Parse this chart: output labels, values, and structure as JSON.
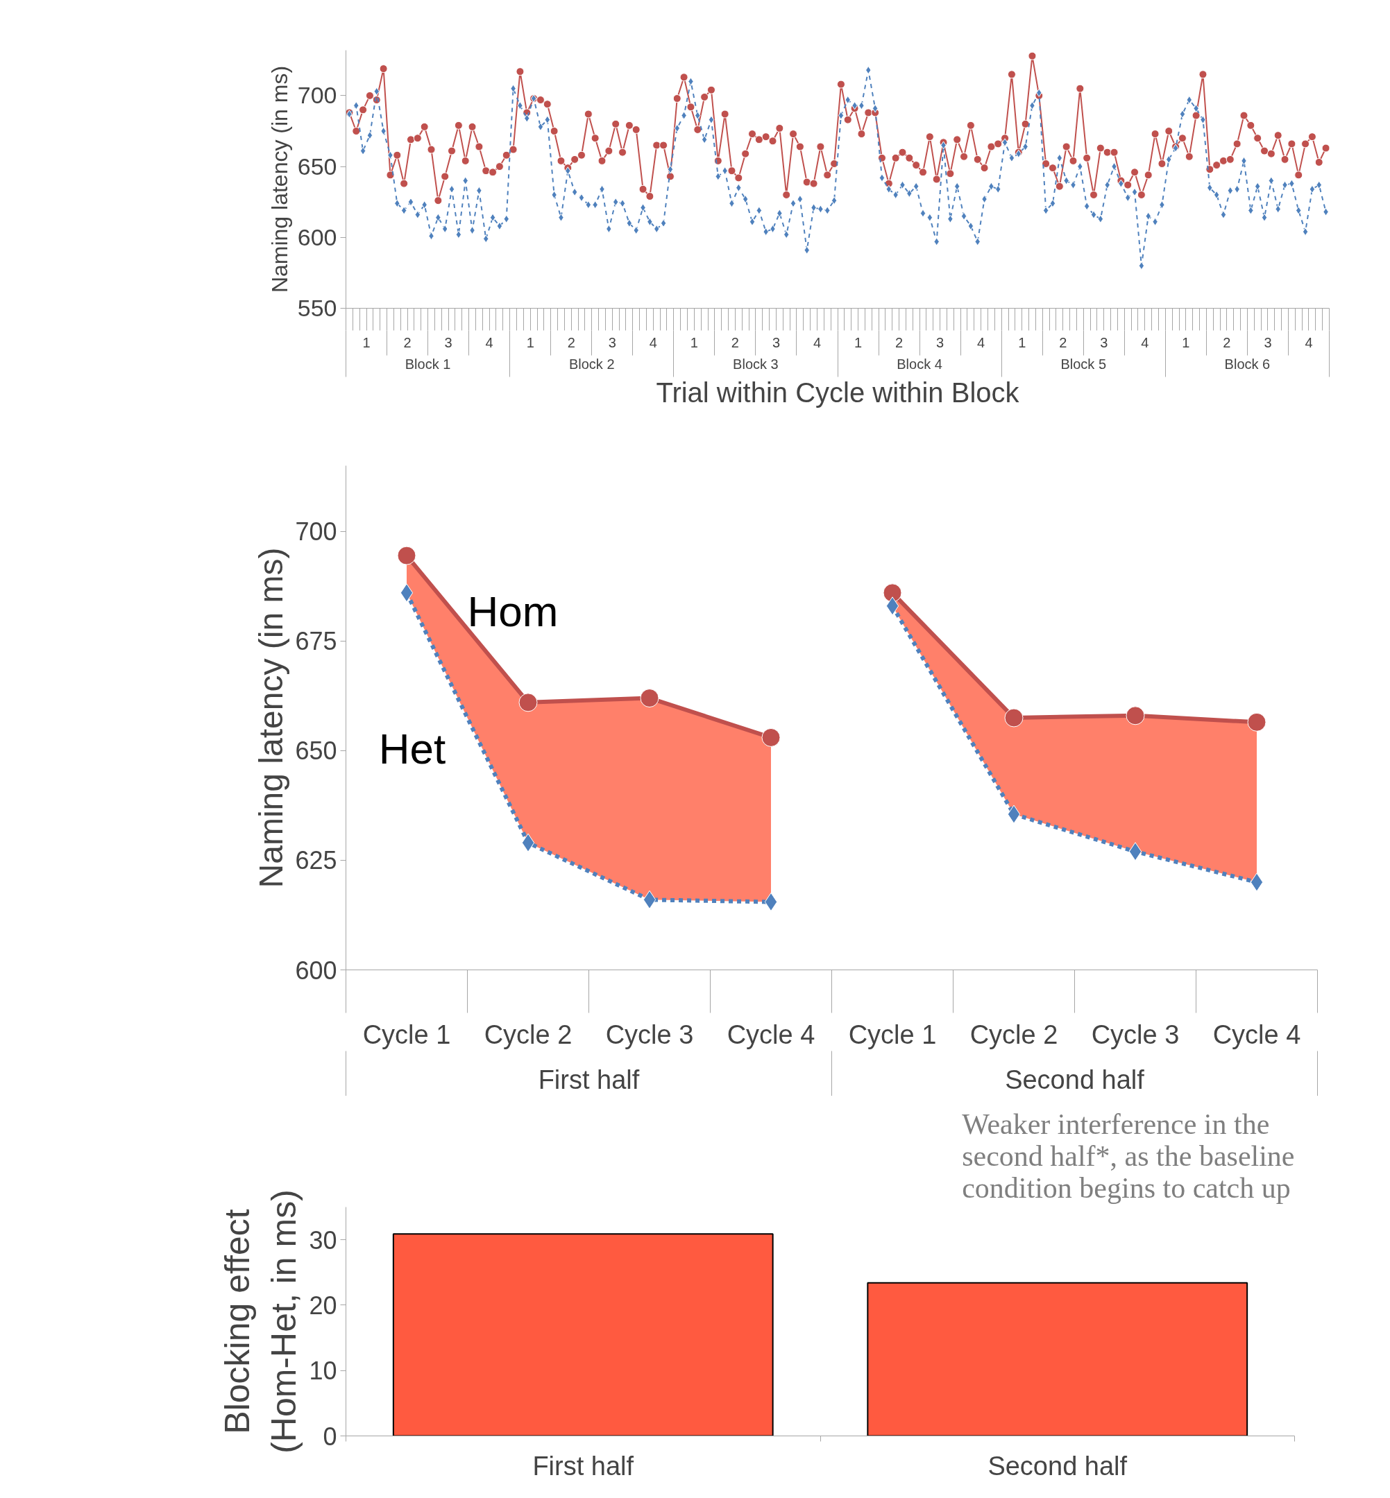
{
  "chart_data": [
    {
      "type": "line",
      "xlabel": "Trial within Cycle within Block",
      "ylabel": "Naming latency (in ms)",
      "categories": [
        null,
        null,
        null,
        null,
        null,
        null,
        null,
        null,
        null,
        null,
        null,
        null,
        null,
        null,
        null,
        null,
        null,
        null,
        null,
        null,
        null,
        null,
        null,
        null,
        null,
        null,
        null,
        null,
        null,
        null,
        null,
        null,
        null,
        null,
        null,
        null,
        null,
        null,
        null,
        null,
        null,
        null,
        null,
        null,
        null,
        null,
        null,
        null,
        null,
        null,
        null,
        null,
        null,
        null,
        null,
        null,
        null,
        null,
        null,
        null,
        null,
        null,
        null,
        null,
        null,
        null,
        null,
        null,
        null,
        null,
        null,
        null,
        null,
        null,
        null,
        null,
        null,
        null,
        null,
        null,
        null,
        null,
        null,
        null,
        null,
        null,
        null,
        null,
        null,
        null,
        null,
        null,
        null,
        null,
        null,
        null,
        null,
        null,
        null,
        null,
        null,
        null,
        null,
        null,
        null,
        null,
        null,
        null,
        null,
        null,
        null,
        null,
        null,
        null,
        null,
        null,
        null,
        null,
        null,
        null,
        null,
        null,
        null,
        null,
        null,
        null,
        null,
        null,
        null,
        null,
        null,
        null,
        null,
        null,
        null,
        null,
        null,
        null,
        null,
        null,
        null,
        null,
        null,
        null
      ],
      "annotations": [
        "1",
        "2",
        "3",
        "4",
        "Block 1",
        "1",
        "2",
        "3",
        "4",
        "Block 2",
        "1",
        "2",
        "3",
        "4",
        "Block 3",
        "1",
        "2",
        "3",
        "4",
        "Block 4",
        "1",
        "2",
        "3",
        "4",
        "Block 5",
        "1",
        "2",
        "3",
        "4",
        "Block 6"
      ],
      "ylim": [
        550,
        732
      ],
      "yticks": [
        550,
        600,
        650,
        700
      ],
      "series": [
        {
          "color": "#c0504d",
          "marker": "circle",
          "line_style": "solid",
          "values": [
            688,
            675,
            690,
            700,
            697,
            719,
            644,
            658,
            638,
            669,
            670,
            678,
            662,
            626,
            643,
            661,
            679,
            654,
            678,
            664,
            647,
            646,
            650,
            658,
            662,
            717,
            688,
            698,
            697,
            694,
            675,
            654,
            649,
            655,
            658,
            687,
            670,
            654,
            661,
            680,
            660,
            679,
            676,
            634,
            629,
            665,
            665,
            643,
            698,
            713,
            692,
            676,
            699,
            704,
            654,
            687,
            647,
            642,
            659,
            673,
            669,
            671,
            668,
            677,
            630,
            673,
            664,
            639,
            638,
            664,
            644,
            652,
            708,
            683,
            691,
            673,
            688,
            688,
            656,
            638,
            656,
            660,
            656,
            651,
            646,
            671,
            641,
            667,
            645,
            669,
            657,
            679,
            655,
            649,
            664,
            666,
            670,
            715,
            660,
            680,
            728,
            700,
            652,
            649,
            636,
            664,
            654,
            705,
            656,
            630,
            663,
            660,
            660,
            640,
            637,
            646,
            630,
            644,
            673,
            652,
            675,
            664,
            670,
            657,
            686,
            715,
            648,
            651,
            654,
            655,
            666,
            686,
            679,
            670,
            661,
            659,
            672,
            655,
            666,
            644,
            666,
            671,
            653,
            663
          ]
        },
        {
          "color": "#4f81bd",
          "marker": "diamond",
          "line_style": "dashed",
          "values": [
            687,
            693,
            661,
            672,
            703,
            675,
            658,
            624,
            619,
            625,
            616,
            623,
            601,
            614,
            606,
            634,
            602,
            640,
            605,
            633,
            599,
            614,
            608,
            613,
            705,
            693,
            684,
            698,
            678,
            683,
            630,
            614,
            647,
            632,
            628,
            623,
            623,
            634,
            606,
            625,
            624,
            610,
            605,
            621,
            611,
            606,
            610,
            648,
            677,
            686,
            710,
            686,
            669,
            683,
            643,
            647,
            624,
            635,
            627,
            611,
            619,
            604,
            606,
            617,
            602,
            624,
            627,
            591,
            621,
            620,
            619,
            626,
            686,
            697,
            693,
            693,
            718,
            691,
            642,
            634,
            630,
            637,
            631,
            636,
            617,
            614,
            597,
            665,
            613,
            636,
            615,
            608,
            597,
            627,
            636,
            634,
            667,
            656,
            659,
            664,
            693,
            702,
            619,
            624,
            656,
            640,
            637,
            650,
            622,
            616,
            613,
            637,
            650,
            638,
            628,
            632,
            580,
            615,
            611,
            623,
            655,
            663,
            687,
            697,
            691,
            683,
            635,
            630,
            616,
            633,
            634,
            654,
            619,
            636,
            614,
            640,
            620,
            637,
            638,
            619,
            604,
            634,
            637,
            618
          ]
        }
      ]
    },
    {
      "type": "line",
      "ylabel": "Naming latency (in ms)",
      "categories": [
        "Cycle 1",
        "Cycle 2",
        "Cycle 3",
        "Cycle 4",
        "Cycle 1",
        "Cycle 2",
        "Cycle 3",
        "Cycle 4"
      ],
      "annotations": [
        "First half",
        "Second half"
      ],
      "ylim": [
        600,
        715
      ],
      "yticks": [
        600,
        625,
        650,
        675,
        700
      ],
      "series": [
        {
          "name": "Hom",
          "color": "#c0504d",
          "marker": "circle",
          "line_style": "solid",
          "values": [
            694.5,
            661,
            662,
            653,
            686,
            657.5,
            658,
            656.5
          ],
          "lower": [
            686,
            629,
            616,
            615.5,
            683,
            635.5,
            627,
            620
          ],
          "upper": [
            694.5,
            661,
            662,
            653,
            686,
            657.5,
            658,
            656.5
          ]
        },
        {
          "name": "Het",
          "color": "#4f81bd",
          "marker": "diamond",
          "line_style": "dashed",
          "values": [
            686,
            629,
            616,
            615.5,
            683,
            635.5,
            627,
            620
          ]
        }
      ]
    },
    {
      "type": "bar",
      "ylabel": "Blocking effect\n(Hom-Het, in ms)",
      "categories": [
        "First half",
        "Second half"
      ],
      "values": [
        30.9,
        23.4
      ],
      "color": "#ff5a40",
      "ylim": [
        0,
        35
      ],
      "yticks": [
        0,
        10,
        20,
        30
      ],
      "annotations": [
        "Weaker interference in the\nsecond half*, as the baseline\ncondition begins to catch up"
      ]
    }
  ]
}
